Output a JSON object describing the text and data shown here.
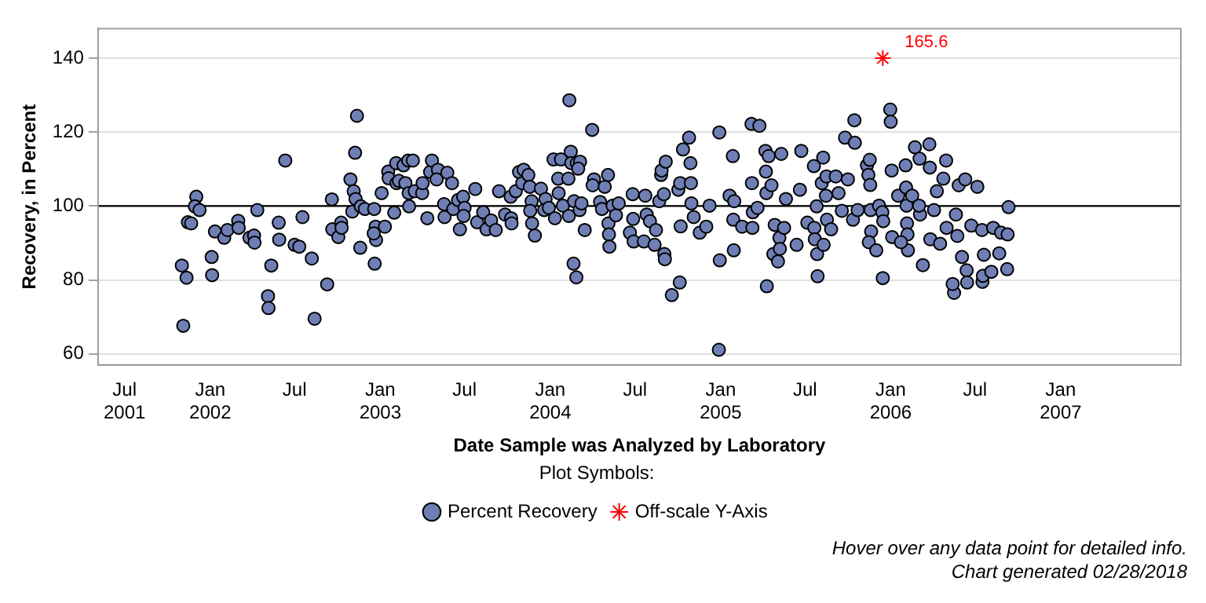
{
  "chart_data": {
    "type": "scatter",
    "xlabel": "Date Sample was Analyzed by Laboratory",
    "ylabel": "Recovery, in Percent",
    "legend_title": "Plot Symbols:",
    "legend": "bottom",
    "grid": "y",
    "xlim": [
      "2001-05-05",
      "2007-09-16"
    ],
    "ylim": [
      57,
      148
    ],
    "yticks": [
      60,
      80,
      100,
      120,
      140
    ],
    "xticks": [
      {
        "value": "2001-07-01",
        "label": "Jul 2001"
      },
      {
        "value": "2002-01-01",
        "label": "Jan 2002"
      },
      {
        "value": "2002-07-01",
        "label": "Jul"
      },
      {
        "value": "2003-01-01",
        "label": "Jan 2003"
      },
      {
        "value": "2003-07-01",
        "label": "Jul"
      },
      {
        "value": "2004-01-01",
        "label": "Jan 2004"
      },
      {
        "value": "2004-07-01",
        "label": "Jul"
      },
      {
        "value": "2005-01-01",
        "label": "Jan 2005"
      },
      {
        "value": "2005-07-01",
        "label": "Jul"
      },
      {
        "value": "2006-01-01",
        "label": "Jan 2006"
      },
      {
        "value": "2006-07-01",
        "label": "Jul"
      },
      {
        "value": "2007-01-01",
        "label": "Jan 2007"
      }
    ],
    "ref_lines": [
      {
        "axis": "y",
        "value": 100,
        "color": "#000000"
      }
    ],
    "series": [
      {
        "name": "Percent Recovery",
        "color": "#6f7fb5",
        "marker": "circle",
        "x": [
          "2001-11-04",
          "2001-11-01",
          "2001-11-11",
          "2001-11-14",
          "2001-11-21",
          "2001-12-02",
          "2001-11-29",
          "2001-12-09",
          "2002-01-04",
          "2002-01-05",
          "2002-01-11",
          "2002-01-31",
          "2002-02-07",
          "2002-03-02",
          "2002-03-03",
          "2002-03-26",
          "2002-04-05",
          "2002-04-06",
          "2002-04-12",
          "2002-05-12",
          "2002-05-05",
          "2002-05-06",
          "2002-05-28",
          "2002-05-29",
          "2002-06-11",
          "2002-07-01",
          "2002-07-11",
          "2002-07-18",
          "2002-08-07",
          "2002-08-13",
          "2002-09-09",
          "2002-09-19",
          "2002-09-20",
          "2002-10-03",
          "2002-10-09",
          "2002-10-10",
          "2002-10-29",
          "2002-11-05",
          "2002-11-08",
          "2002-11-09",
          "2002-11-12",
          "2002-11-02",
          "2002-11-19",
          "2002-11-20",
          "2002-11-29",
          "2002-12-19",
          "2002-12-20",
          "2002-12-22",
          "2002-12-23",
          "2002-12-18",
          "2003-01-04",
          "2003-01-11",
          "2003-01-18",
          "2003-01-19",
          "2003-01-31",
          "2003-02-04",
          "2003-02-05",
          "2003-02-10",
          "2003-02-20",
          "2003-02-24",
          "2003-03-02",
          "2003-03-03",
          "2003-03-04",
          "2003-03-12",
          "2003-03-16",
          "2003-04-01",
          "2003-04-02",
          "2003-04-12",
          "2003-04-18",
          "2003-04-22",
          "2003-05-05",
          "2003-05-02",
          "2003-05-25",
          "2003-06-04",
          "2003-05-18",
          "2003-05-19",
          "2003-06-07",
          "2003-06-17",
          "2003-06-21",
          "2003-06-28",
          "2003-07-01",
          "2003-06-29",
          "2003-07-24",
          "2003-07-28",
          "2003-08-10",
          "2003-08-17",
          "2003-08-27",
          "2003-09-06",
          "2003-09-13",
          "2003-09-26",
          "2003-10-09",
          "2003-10-10",
          "2003-10-08",
          "2003-10-19",
          "2003-10-26",
          "2003-11-05",
          "2003-11-02",
          "2003-11-15",
          "2003-11-18",
          "2003-11-22",
          "2003-11-19",
          "2003-11-23",
          "2003-11-29",
          "2003-12-12",
          "2003-12-22",
          "2003-12-19",
          "2003-12-29",
          "2004-01-11",
          "2004-01-08",
          "2004-01-24",
          "2004-01-18",
          "2004-01-19",
          "2004-01-28",
          "2004-02-10",
          "2004-02-11",
          "2004-02-14",
          "2004-02-15",
          "2004-02-09",
          "2004-02-27",
          "2004-03-05",
          "2004-03-01",
          "2004-02-20",
          "2004-02-26",
          "2004-02-21",
          "2004-03-04",
          "2004-03-15",
          "2004-03-08",
          "2004-03-31",
          "2004-04-04",
          "2004-04-01",
          "2004-04-17",
          "2004-04-21",
          "2004-04-27",
          "2004-05-04",
          "2004-05-05",
          "2004-05-06",
          "2004-05-07",
          "2004-05-14",
          "2004-05-21",
          "2004-05-27",
          "2004-06-20",
          "2004-06-26",
          "2004-06-27",
          "2004-06-28",
          "2004-07-23",
          "2004-07-26",
          "2004-07-20",
          "2004-08-02",
          "2004-08-12",
          "2004-08-15",
          "2004-08-22",
          "2004-08-26",
          "2004-08-27",
          "2004-09-01",
          "2004-09-02",
          "2004-09-03",
          "2004-09-05",
          "2004-09-18",
          "2004-10-05",
          "2004-10-02",
          "2004-10-06",
          "2004-10-07",
          "2004-10-12",
          "2004-10-25",
          "2004-10-28",
          "2004-10-29",
          "2004-10-30",
          "2004-11-04",
          "2004-11-17",
          "2004-12-01",
          "2004-12-08",
          "2004-12-28",
          "2004-12-29",
          "2004-12-30",
          "2005-01-20",
          "2005-01-27",
          "2005-01-30",
          "2005-01-28",
          "2005-01-29",
          "2005-02-16",
          "2005-03-08",
          "2005-03-25",
          "2005-03-09",
          "2005-03-11",
          "2005-03-21",
          "2005-03-10",
          "2005-04-07",
          "2005-04-14",
          "2005-04-08",
          "2005-04-09",
          "2005-04-20",
          "2005-04-27",
          "2005-04-10",
          "2005-05-07",
          "2005-05-17",
          "2005-04-24",
          "2005-05-04",
          "2005-05-08",
          "2005-05-11",
          "2005-05-21",
          "2005-06-13",
          "2005-06-23",
          "2005-06-20",
          "2005-07-06",
          "2005-07-20",
          "2005-07-21",
          "2005-07-22",
          "2005-07-27",
          "2005-07-28",
          "2005-07-26",
          "2005-08-06",
          "2005-08-09",
          "2005-08-10",
          "2005-08-16",
          "2005-08-17",
          "2005-08-26",
          "2005-08-15",
          "2005-09-05",
          "2005-09-11",
          "2005-09-18",
          "2005-09-25",
          "2005-10-01",
          "2005-10-15",
          "2005-10-16",
          "2005-10-12",
          "2005-10-22",
          "2005-11-11",
          "2005-11-17",
          "2005-11-14",
          "2005-11-18",
          "2005-11-19",
          "2005-11-20",
          "2005-11-15",
          "2005-12-01",
          "2005-12-07",
          "2005-12-14",
          "2005-12-15",
          "2005-12-16",
          "2005-12-31",
          "2006-01-01",
          "2006-01-03",
          "2006-01-04",
          "2006-01-17",
          "2006-02-02",
          "2006-02-03",
          "2006-02-04",
          "2006-02-05",
          "2006-02-06",
          "2006-02-07",
          "2006-01-23",
          "2006-02-16",
          "2006-02-22",
          "2006-03-04",
          "2006-03-05",
          "2006-03-03",
          "2006-03-11",
          "2006-03-25",
          "2006-03-26",
          "2006-03-27",
          "2006-04-04",
          "2006-04-10",
          "2006-04-17",
          "2006-04-24",
          "2006-04-30",
          "2006-05-01",
          "2006-05-17",
          "2006-05-14",
          "2006-05-21",
          "2006-05-24",
          "2006-05-27",
          "2006-06-10",
          "2006-06-03",
          "2006-06-13",
          "2006-06-14",
          "2006-06-23",
          "2006-07-06",
          "2006-07-16",
          "2006-07-17",
          "2006-07-18",
          "2006-07-20",
          "2006-08-05",
          "2006-08-09",
          "2006-08-22",
          "2006-08-26",
          "2006-09-08",
          "2006-09-11",
          "2006-09-09"
        ],
        "values": [
          67.6,
          83.9,
          80.6,
          95.6,
          95.3,
          102.5,
          99.9,
          98.9,
          86.2,
          81.3,
          93.1,
          91.4,
          93.5,
          96,
          94.1,
          91.4,
          92,
          90.1,
          98.9,
          83.9,
          75.6,
          72.4,
          95.5,
          90.9,
          112.3,
          89.5,
          89,
          97,
          85.8,
          69.5,
          78.8,
          101.8,
          93.7,
          91.6,
          95.5,
          94.1,
          107.2,
          104,
          114.4,
          101.9,
          124.4,
          98.5,
          88.7,
          99.9,
          99.2,
          99.2,
          84.4,
          94.4,
          90.8,
          92.6,
          103.5,
          94.4,
          109.3,
          107.5,
          98.2,
          111.6,
          106.2,
          106.8,
          111,
          106.2,
          112.3,
          103.5,
          99.9,
          112.3,
          104,
          103.5,
          106.2,
          96.7,
          109.2,
          112.3,
          109.8,
          107.2,
          109,
          106.2,
          100.5,
          97,
          99.2,
          101.6,
          93.7,
          102.5,
          99.5,
          97.3,
          104.6,
          95.6,
          98.3,
          93.7,
          96.1,
          93.5,
          104,
          97.7,
          96.7,
          95.3,
          102.5,
          104,
          109.2,
          109.8,
          106.2,
          108.4,
          105.2,
          101.3,
          98.7,
          95.3,
          92,
          104.7,
          101.9,
          98.9,
          99.5,
          96.7,
          112.6,
          112.6,
          107.4,
          103.5,
          100.1,
          97.3,
          128.6,
          114.7,
          111.6,
          107.4,
          111.6,
          112,
          110.1,
          84.4,
          80.7,
          101.3,
          98.9,
          93.5,
          100.7,
          120.6,
          107.2,
          105.6,
          101.1,
          99.2,
          105.2,
          108.4,
          95.3,
          92.3,
          89,
          100.1,
          97.5,
          100.7,
          92.8,
          103.2,
          96.5,
          90.4,
          102.8,
          97.7,
          90.4,
          95.9,
          89.5,
          93.5,
          101.3,
          108.4,
          109.6,
          103.2,
          87,
          85.6,
          112,
          75.9,
          79.3,
          104.4,
          106.2,
          94.5,
          115.3,
          118.5,
          111.6,
          106.2,
          100.7,
          97,
          92.8,
          94.4,
          100.1,
          61.1,
          119.9,
          85.3,
          102.8,
          113.5,
          101.3,
          96.3,
          88,
          94.4,
          122.2,
          121.7,
          106.2,
          98.3,
          99.5,
          94.1,
          114.9,
          113.5,
          109.3,
          103.5,
          105.6,
          94.9,
          78.3,
          91.4,
          94.1,
          87,
          85,
          88.4,
          114.1,
          101.9,
          89.5,
          114.9,
          104.4,
          95.5,
          110.8,
          94.1,
          91,
          87,
          81,
          99.9,
          106.2,
          113.1,
          89.5,
          108,
          96.3,
          93.7,
          102.8,
          108,
          103.5,
          98.7,
          118.5,
          107.2,
          123.2,
          117.1,
          96.3,
          98.9,
          111,
          112.5,
          108.4,
          105.7,
          98.9,
          93.1,
          90.2,
          88,
          100.1,
          98.3,
          80.5,
          95.9,
          126.1,
          122.8,
          109.6,
          91.6,
          102.8,
          111,
          105,
          100.1,
          95.3,
          92.3,
          88,
          90.2,
          102.8,
          115.9,
          112.8,
          97.7,
          100.1,
          84,
          116.7,
          110.4,
          91,
          98.9,
          104,
          89.8,
          107.4,
          112.3,
          94.1,
          76.5,
          78.9,
          97.7,
          91.9,
          105.6,
          107.2,
          86.2,
          82.6,
          79.3,
          94.7,
          105.2,
          93.5,
          79.5,
          81.1,
          86.8,
          82.2,
          94.1,
          87.2,
          92.8,
          82.9,
          99.7,
          92.3
        ]
      },
      {
        "name": "Off-scale Y-Axis",
        "color": "#ff0000",
        "marker": "cross",
        "x": [
          "2005-12-15"
        ],
        "values": [
          140
        ]
      }
    ],
    "annotations": [
      {
        "text": "165.6",
        "x": "2005-12-15",
        "y": 140
      },
      "Hover over any data point for detailed info.",
      "Chart generated 02/28/2018"
    ]
  }
}
